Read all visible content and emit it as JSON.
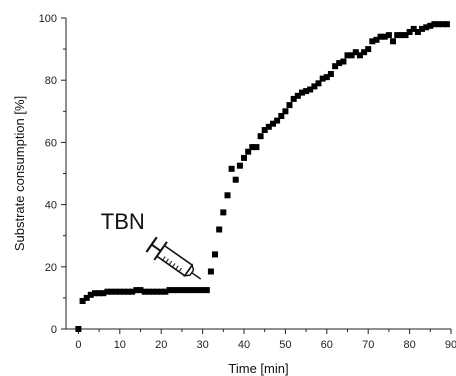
{
  "chart_data": {
    "type": "scatter",
    "xlabel": "Time [min]",
    "ylabel": "Substrate consumption [%]",
    "xlim": [
      -3,
      90
    ],
    "ylim": [
      0,
      100
    ],
    "xticks": [
      0,
      10,
      20,
      30,
      40,
      50,
      60,
      70,
      80,
      90
    ],
    "yticks": [
      0,
      20,
      40,
      60,
      80,
      100
    ],
    "grid": false,
    "marker_color": "#000000",
    "annotation": {
      "text": "TBN",
      "icon": "syringe-icon",
      "at_x": 31
    },
    "series": [
      {
        "x": [
          0,
          1,
          2,
          3,
          4,
          5,
          6,
          7,
          8,
          9,
          10,
          11,
          12,
          13,
          14,
          15,
          16,
          17,
          18,
          19,
          20,
          21,
          22,
          23,
          24,
          25,
          26,
          27,
          28,
          29,
          30,
          31,
          32,
          33,
          34,
          35,
          36,
          37,
          38,
          39,
          40,
          41,
          42,
          43,
          44,
          45,
          46,
          47,
          48,
          49,
          50,
          51,
          52,
          53,
          54,
          55,
          56,
          57,
          58,
          59,
          60,
          61,
          62,
          63,
          64,
          65,
          66,
          67,
          68,
          69,
          70,
          71,
          72,
          73,
          74,
          75,
          76,
          77,
          78,
          79,
          80,
          81,
          82,
          83,
          84,
          85,
          86,
          87,
          88,
          89
        ],
        "y": [
          0,
          9,
          10,
          11,
          11.5,
          11.5,
          11.5,
          12,
          12,
          12,
          12,
          12,
          12,
          12,
          12.5,
          12.5,
          12,
          12,
          12,
          12,
          12,
          12,
          12.5,
          12.5,
          12.5,
          12.5,
          12.5,
          12.5,
          12.5,
          12.5,
          12.5,
          12.5,
          18.5,
          24,
          32,
          37.5,
          43,
          51.5,
          48,
          52.5,
          55,
          57,
          58.5,
          58.5,
          62,
          64,
          65,
          66,
          67,
          68.5,
          70,
          72,
          74,
          75,
          76,
          76.5,
          77,
          78,
          79,
          80.5,
          81,
          82,
          84.5,
          85.5,
          86,
          88,
          88,
          89,
          88,
          89,
          90,
          92.5,
          93,
          94,
          94,
          94.5,
          92.5,
          94.5,
          94.5,
          94.5,
          95.5,
          96.5,
          95.5,
          96.5,
          97,
          97.5,
          98,
          98,
          98,
          98
        ]
      }
    ]
  }
}
